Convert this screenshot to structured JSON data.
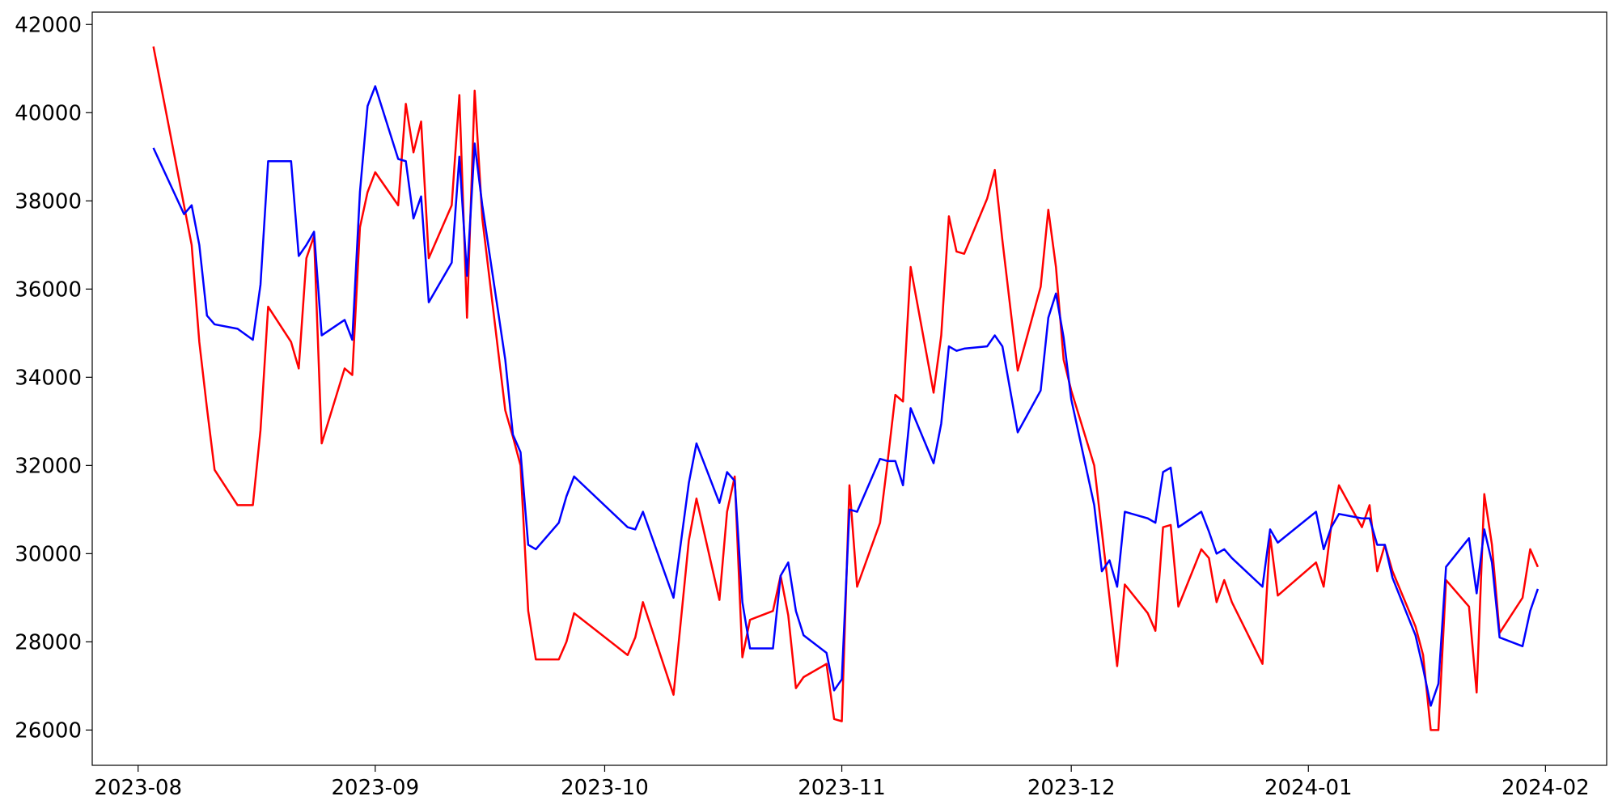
{
  "chart_data": {
    "type": "line",
    "x": [
      "2023-08-03",
      "2023-08-07",
      "2023-08-08",
      "2023-08-09",
      "2023-08-10",
      "2023-08-11",
      "2023-08-14",
      "2023-08-16",
      "2023-08-17",
      "2023-08-18",
      "2023-08-21",
      "2023-08-22",
      "2023-08-23",
      "2023-08-24",
      "2023-08-25",
      "2023-08-28",
      "2023-08-29",
      "2023-08-30",
      "2023-08-31",
      "2023-09-01",
      "2023-09-04",
      "2023-09-05",
      "2023-09-06",
      "2023-09-07",
      "2023-09-08",
      "2023-09-11",
      "2023-09-12",
      "2023-09-13",
      "2023-09-14",
      "2023-09-15",
      "2023-09-18",
      "2023-09-19",
      "2023-09-20",
      "2023-09-21",
      "2023-09-22",
      "2023-09-25",
      "2023-09-26",
      "2023-09-27",
      "2023-10-04",
      "2023-10-05",
      "2023-10-06",
      "2023-10-10",
      "2023-10-12",
      "2023-10-13",
      "2023-10-16",
      "2023-10-17",
      "2023-10-18",
      "2023-10-19",
      "2023-10-20",
      "2023-10-23",
      "2023-10-24",
      "2023-10-25",
      "2023-10-26",
      "2023-10-27",
      "2023-10-30",
      "2023-10-31",
      "2023-11-01",
      "2023-11-02",
      "2023-11-03",
      "2023-11-06",
      "2023-11-07",
      "2023-11-08",
      "2023-11-09",
      "2023-11-10",
      "2023-11-13",
      "2023-11-14",
      "2023-11-15",
      "2023-11-16",
      "2023-11-17",
      "2023-11-20",
      "2023-11-21",
      "2023-11-22",
      "2023-11-24",
      "2023-11-27",
      "2023-11-28",
      "2023-11-29",
      "2023-11-30",
      "2023-12-01",
      "2023-12-04",
      "2023-12-05",
      "2023-12-06",
      "2023-12-07",
      "2023-12-08",
      "2023-12-11",
      "2023-12-12",
      "2023-12-13",
      "2023-12-14",
      "2023-12-15",
      "2023-12-18",
      "2023-12-19",
      "2023-12-20",
      "2023-12-21",
      "2023-12-22",
      "2023-12-26",
      "2023-12-27",
      "2023-12-28",
      "2024-01-02",
      "2024-01-03",
      "2024-01-04",
      "2024-01-05",
      "2024-01-08",
      "2024-01-09",
      "2024-01-10",
      "2024-01-11",
      "2024-01-12",
      "2024-01-15",
      "2024-01-16",
      "2024-01-17",
      "2024-01-18",
      "2024-01-19",
      "2024-01-22",
      "2024-01-23",
      "2024-01-24",
      "2024-01-25",
      "2024-01-26",
      "2024-01-29",
      "2024-01-30",
      "2024-01-31"
    ],
    "series": [
      {
        "color": "#ff0000",
        "values": [
          41500,
          37900,
          37000,
          34800,
          33300,
          31900,
          31100,
          31100,
          32800,
          35600,
          34800,
          34200,
          36700,
          37200,
          32500,
          34200,
          34050,
          37400,
          38200,
          38650,
          37900,
          40200,
          39100,
          39800,
          36700,
          37900,
          40400,
          35350,
          40500,
          37600,
          33250,
          32650,
          32000,
          28700,
          27600,
          27600,
          28000,
          28650,
          27700,
          28100,
          28900,
          26800,
          30300,
          31250,
          28950,
          30950,
          31750,
          27650,
          28500,
          28700,
          29500,
          28600,
          26950,
          27200,
          27500,
          26250,
          26200,
          31550,
          29250,
          30700,
          32100,
          33600,
          33450,
          36500,
          33650,
          34950,
          37650,
          36850,
          36800,
          38050,
          38700,
          37100,
          34150,
          36050,
          37800,
          36500,
          34400,
          33700,
          32000,
          30500,
          29000,
          27450,
          29300,
          28650,
          28250,
          30600,
          30650,
          28800,
          30100,
          29900,
          28900,
          29400,
          28900,
          27500,
          30400,
          29050,
          29800,
          29250,
          30650,
          31550,
          30600,
          31100,
          29600,
          30200,
          29600,
          28350,
          27700,
          26000,
          26000,
          29400,
          28800,
          26850,
          31350,
          30200,
          28200,
          29000,
          30100,
          29700
        ]
      },
      {
        "color": "#0000ff",
        "values": [
          39200,
          37700,
          37900,
          37000,
          35400,
          35200,
          35100,
          34850,
          36100,
          38900,
          38900,
          36750,
          37000,
          37300,
          34950,
          35300,
          34850,
          38200,
          40150,
          40600,
          38950,
          38900,
          37600,
          38100,
          35700,
          36600,
          39000,
          36300,
          39300,
          37900,
          34400,
          32700,
          32300,
          30200,
          30100,
          30700,
          31300,
          31750,
          30600,
          30550,
          30950,
          29000,
          31600,
          32500,
          31150,
          31850,
          31650,
          28900,
          27850,
          27850,
          29500,
          29800,
          28700,
          28150,
          27750,
          26900,
          27150,
          31000,
          30950,
          32150,
          32100,
          32100,
          31550,
          33300,
          32050,
          32950,
          34700,
          34600,
          34650,
          34700,
          34950,
          34700,
          32750,
          33700,
          35350,
          35900,
          34900,
          33500,
          31100,
          29600,
          29850,
          29250,
          30950,
          30800,
          30700,
          31850,
          31950,
          30600,
          30950,
          30500,
          30000,
          30100,
          29900,
          29250,
          30550,
          30250,
          30950,
          30100,
          30600,
          30900,
          30800,
          30800,
          30200,
          30200,
          29450,
          28150,
          27400,
          26550,
          27050,
          29700,
          30350,
          29100,
          30550,
          29800,
          28100,
          27900,
          28700,
          29200
        ]
      }
    ],
    "xlim": [
      "2023-07-26",
      "2024-02-09"
    ],
    "xticks": [
      {
        "value": "2023-08-01",
        "label": "2023-08"
      },
      {
        "value": "2023-09-01",
        "label": "2023-09"
      },
      {
        "value": "2023-10-01",
        "label": "2023-10"
      },
      {
        "value": "2023-11-01",
        "label": "2023-11"
      },
      {
        "value": "2023-12-01",
        "label": "2023-12"
      },
      {
        "value": "2024-01-01",
        "label": "2024-01"
      },
      {
        "value": "2024-02-01",
        "label": "2024-02"
      }
    ],
    "ylim": [
      25200,
      42280
    ],
    "yticks": [
      26000,
      28000,
      30000,
      32000,
      34000,
      36000,
      38000,
      40000,
      42000
    ],
    "grid": false
  }
}
